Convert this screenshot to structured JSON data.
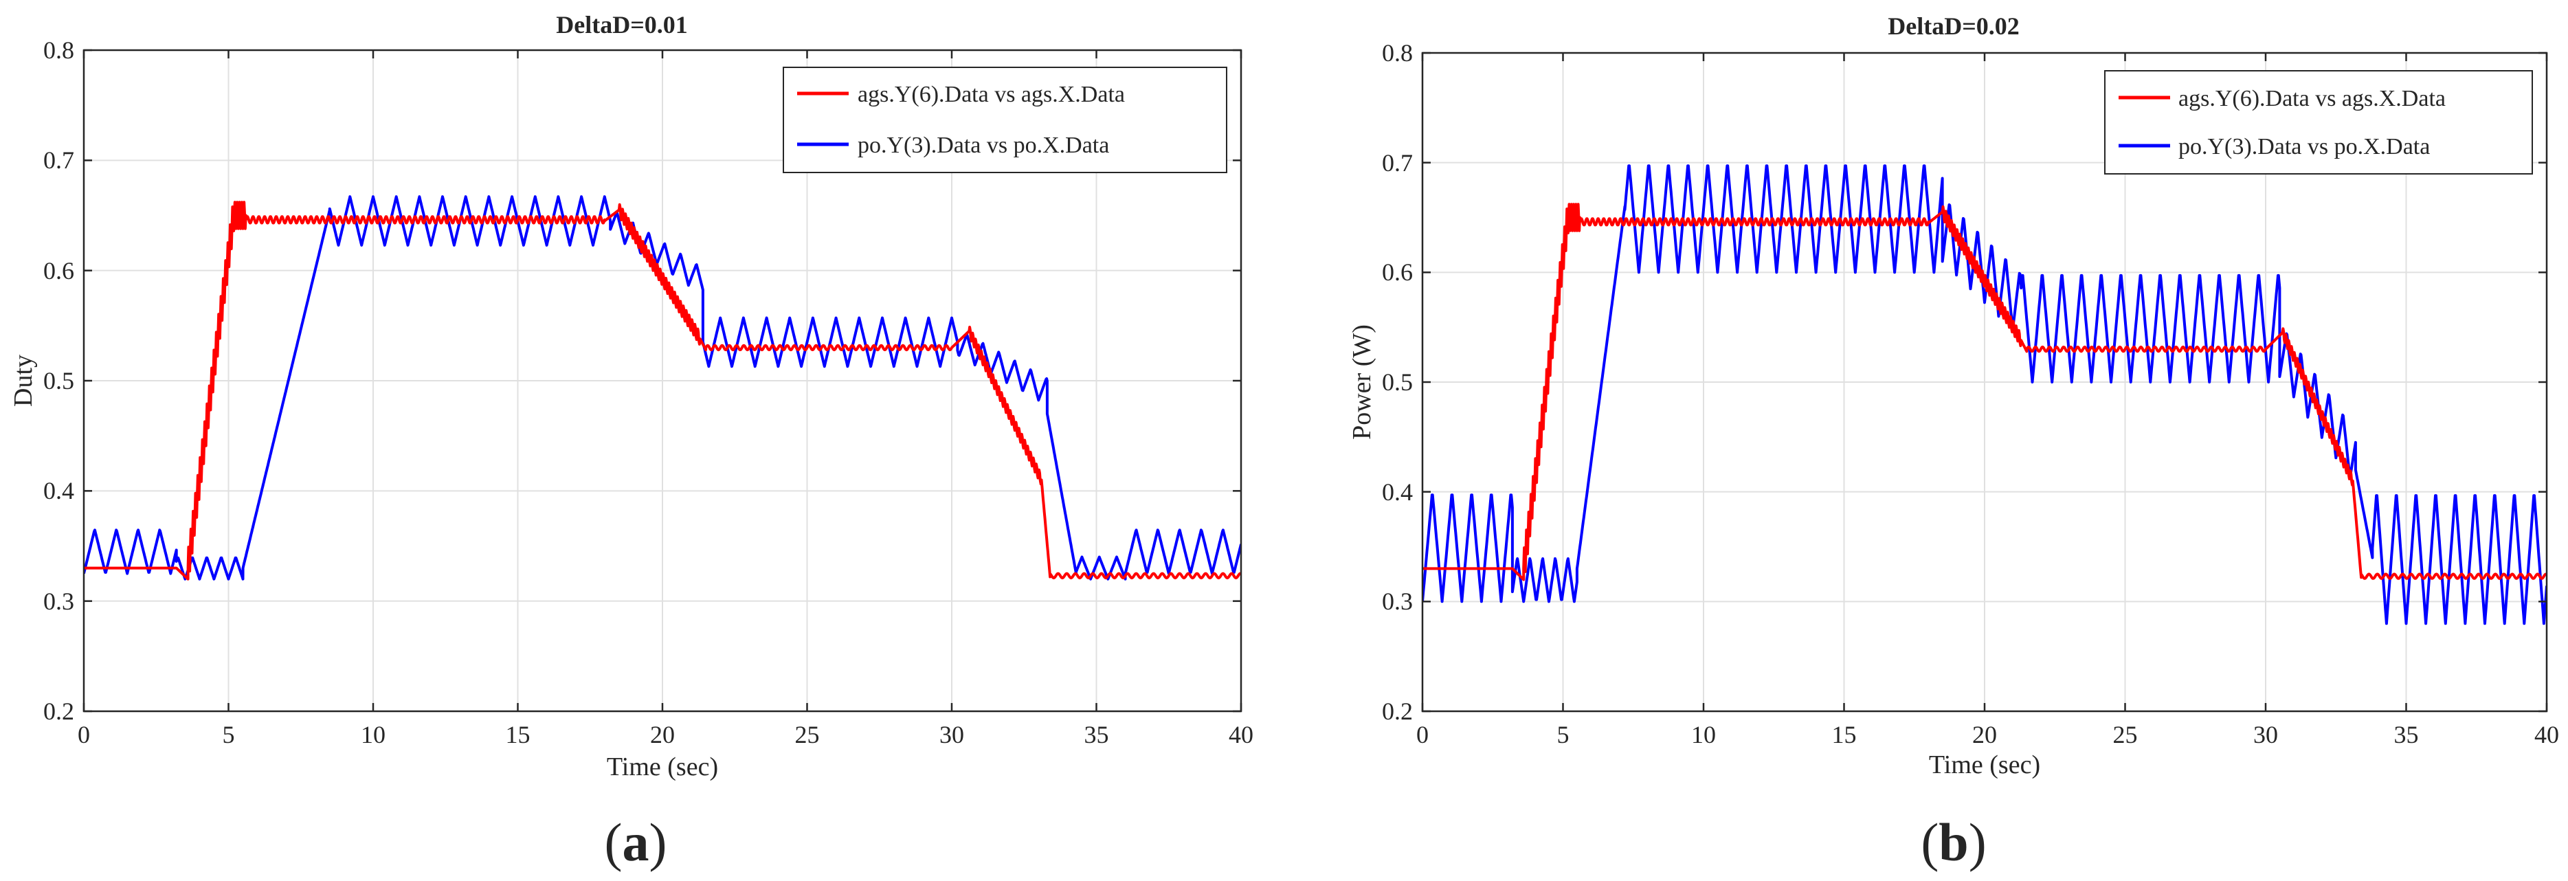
{
  "chart_data": [
    {
      "type": "line",
      "panel_label": {
        "open": "(",
        "letter": "a",
        "close": ")"
      },
      "title": "DeltaD=0.01",
      "xlabel": "Time (sec)",
      "ylabel": "Duty",
      "xlim": [
        0,
        40
      ],
      "ylim": [
        0.2,
        0.8
      ],
      "xticks": [
        0,
        5,
        10,
        15,
        20,
        25,
        30,
        35,
        40
      ],
      "yticks": [
        0.2,
        0.3,
        0.4,
        0.5,
        0.6,
        0.7,
        0.8
      ],
      "ytick_labels": [
        "0.2",
        "0.3",
        "0.4",
        "0.5",
        "0.6",
        "0.7",
        "0.8"
      ],
      "grid": true,
      "legend_position": "top-right",
      "series": [
        {
          "name": "ags.Y(6).Data vs ags.X.Data",
          "color": "#ff0000",
          "segments": [
            {
              "x0": 0,
              "x1": 3.2,
              "kind": "flat",
              "level": 0.33
            },
            {
              "x0": 3.2,
              "x1": 3.6,
              "kind": "ramp",
              "from": 0.33,
              "to": 0.32
            },
            {
              "x0": 3.6,
              "x1": 5.2,
              "kind": "ramp_osc",
              "from": 0.33,
              "to": 0.655,
              "amp": 0.015,
              "period": 0.08
            },
            {
              "x0": 5.2,
              "x1": 5.6,
              "kind": "osc",
              "level": 0.65,
              "amp": 0.012,
              "period": 0.08
            },
            {
              "x0": 5.6,
              "x1": 18.0,
              "kind": "osc",
              "level": 0.646,
              "amp": 0.003,
              "period": 0.2
            },
            {
              "x0": 18.0,
              "x1": 18.5,
              "kind": "ramp",
              "from": 0.645,
              "to": 0.655
            },
            {
              "x0": 18.5,
              "x1": 21.3,
              "kind": "ramp_osc",
              "from": 0.655,
              "to": 0.538,
              "amp": 0.006,
              "period": 0.1
            },
            {
              "x0": 21.3,
              "x1": 21.5,
              "kind": "ramp",
              "from": 0.538,
              "to": 0.528
            },
            {
              "x0": 21.5,
              "x1": 30.0,
              "kind": "osc",
              "level": 0.53,
              "amp": 0.002,
              "period": 0.25
            },
            {
              "x0": 30.0,
              "x1": 30.6,
              "kind": "ramp",
              "from": 0.53,
              "to": 0.545
            },
            {
              "x0": 30.6,
              "x1": 33.1,
              "kind": "ramp_osc",
              "from": 0.545,
              "to": 0.41,
              "amp": 0.005,
              "period": 0.1
            },
            {
              "x0": 33.1,
              "x1": 33.4,
              "kind": "ramp",
              "from": 0.41,
              "to": 0.322
            },
            {
              "x0": 33.4,
              "x1": 40.0,
              "kind": "osc",
              "level": 0.323,
              "amp": 0.002,
              "period": 0.3
            }
          ]
        },
        {
          "name": "po.Y(3).Data vs po.X.Data",
          "color": "#0000ff",
          "segments": [
            {
              "x0": 0,
              "x1": 3.2,
              "kind": "tri",
              "center": 0.345,
              "amp": 0.02,
              "period": 0.75
            },
            {
              "x0": 3.2,
              "x1": 5.5,
              "kind": "tri",
              "center": 0.33,
              "amp": 0.01,
              "period": 0.5
            },
            {
              "x0": 5.5,
              "x1": 8.5,
              "kind": "ramp",
              "from": 0.33,
              "to": 0.655
            },
            {
              "x0": 8.5,
              "x1": 18.2,
              "kind": "tri",
              "center": 0.645,
              "amp": 0.022,
              "period": 0.8
            },
            {
              "x0": 18.2,
              "x1": 21.4,
              "kind": "ramp_tri",
              "from": 0.645,
              "to": 0.59,
              "amp": 0.012,
              "period": 0.55
            },
            {
              "x0": 21.4,
              "x1": 30.2,
              "kind": "tri",
              "center": 0.535,
              "amp": 0.022,
              "period": 0.8
            },
            {
              "x0": 30.2,
              "x1": 33.3,
              "kind": "ramp_tri",
              "from": 0.535,
              "to": 0.49,
              "amp": 0.012,
              "period": 0.55
            },
            {
              "x0": 33.3,
              "x1": 34.3,
              "kind": "ramp",
              "from": 0.47,
              "to": 0.325
            },
            {
              "x0": 34.3,
              "x1": 36.0,
              "kind": "tri",
              "center": 0.33,
              "amp": 0.01,
              "period": 0.6
            },
            {
              "x0": 36.0,
              "x1": 40.0,
              "kind": "tri",
              "center": 0.345,
              "amp": 0.02,
              "period": 0.75
            }
          ]
        }
      ]
    },
    {
      "type": "line",
      "panel_label": {
        "open": "(",
        "letter": "b",
        "close": ")"
      },
      "title": "DeltaD=0.02",
      "xlabel": "Time (sec)",
      "ylabel": "Power (W)",
      "xlim": [
        0,
        40
      ],
      "ylim": [
        0.2,
        0.8
      ],
      "xticks": [
        0,
        5,
        10,
        15,
        20,
        25,
        30,
        35,
        40
      ],
      "yticks": [
        0.2,
        0.3,
        0.4,
        0.5,
        0.6,
        0.7,
        0.8
      ],
      "ytick_labels": [
        "0.2",
        "0.3",
        "0.4",
        "0.5",
        "0.6",
        "0.7",
        "0.8"
      ],
      "grid": true,
      "legend_position": "top-right",
      "series": [
        {
          "name": "ags.Y(6).Data vs ags.X.Data",
          "color": "#ff0000",
          "segments": [
            {
              "x0": 0,
              "x1": 3.2,
              "kind": "flat",
              "level": 0.33
            },
            {
              "x0": 3.2,
              "x1": 3.6,
              "kind": "ramp",
              "from": 0.33,
              "to": 0.32
            },
            {
              "x0": 3.6,
              "x1": 5.2,
              "kind": "ramp_osc",
              "from": 0.33,
              "to": 0.655,
              "amp": 0.015,
              "period": 0.08
            },
            {
              "x0": 5.2,
              "x1": 5.6,
              "kind": "osc",
              "level": 0.65,
              "amp": 0.012,
              "period": 0.08
            },
            {
              "x0": 5.6,
              "x1": 18.0,
              "kind": "osc",
              "level": 0.646,
              "amp": 0.003,
              "period": 0.2
            },
            {
              "x0": 18.0,
              "x1": 18.5,
              "kind": "ramp",
              "from": 0.645,
              "to": 0.655
            },
            {
              "x0": 18.5,
              "x1": 21.3,
              "kind": "ramp_osc",
              "from": 0.655,
              "to": 0.538,
              "amp": 0.006,
              "period": 0.1
            },
            {
              "x0": 21.3,
              "x1": 21.5,
              "kind": "ramp",
              "from": 0.538,
              "to": 0.528
            },
            {
              "x0": 21.5,
              "x1": 30.0,
              "kind": "osc",
              "level": 0.53,
              "amp": 0.002,
              "period": 0.25
            },
            {
              "x0": 30.0,
              "x1": 30.6,
              "kind": "ramp",
              "from": 0.53,
              "to": 0.545
            },
            {
              "x0": 30.6,
              "x1": 33.1,
              "kind": "ramp_osc",
              "from": 0.545,
              "to": 0.41,
              "amp": 0.005,
              "period": 0.1
            },
            {
              "x0": 33.1,
              "x1": 33.4,
              "kind": "ramp",
              "from": 0.41,
              "to": 0.322
            },
            {
              "x0": 33.4,
              "x1": 40.0,
              "kind": "osc",
              "level": 0.323,
              "amp": 0.002,
              "period": 0.3
            }
          ]
        },
        {
          "name": "po.Y(3).Data vs po.X.Data",
          "color": "#0000ff",
          "segments": [
            {
              "x0": 0,
              "x1": 3.2,
              "kind": "tri",
              "center": 0.35,
              "amp": 0.05,
              "period": 0.7
            },
            {
              "x0": 3.2,
              "x1": 5.5,
              "kind": "tri",
              "center": 0.32,
              "amp": 0.02,
              "period": 0.45
            },
            {
              "x0": 5.5,
              "x1": 7.2,
              "kind": "ramp",
              "from": 0.33,
              "to": 0.66
            },
            {
              "x0": 7.2,
              "x1": 18.5,
              "kind": "tri",
              "center": 0.65,
              "amp": 0.05,
              "period": 0.7
            },
            {
              "x0": 18.5,
              "x1": 21.3,
              "kind": "ramp_tri",
              "from": 0.64,
              "to": 0.57,
              "amp": 0.03,
              "period": 0.5
            },
            {
              "x0": 21.3,
              "x1": 30.5,
              "kind": "tri",
              "center": 0.55,
              "amp": 0.05,
              "period": 0.7
            },
            {
              "x0": 30.5,
              "x1": 33.2,
              "kind": "ramp_tri",
              "from": 0.53,
              "to": 0.43,
              "amp": 0.025,
              "period": 0.5
            },
            {
              "x0": 33.2,
              "x1": 33.8,
              "kind": "ramp",
              "from": 0.42,
              "to": 0.34
            },
            {
              "x0": 33.8,
              "x1": 40.0,
              "kind": "tri",
              "center": 0.34,
              "amp": 0.06,
              "period": 0.7
            }
          ]
        }
      ]
    }
  ]
}
